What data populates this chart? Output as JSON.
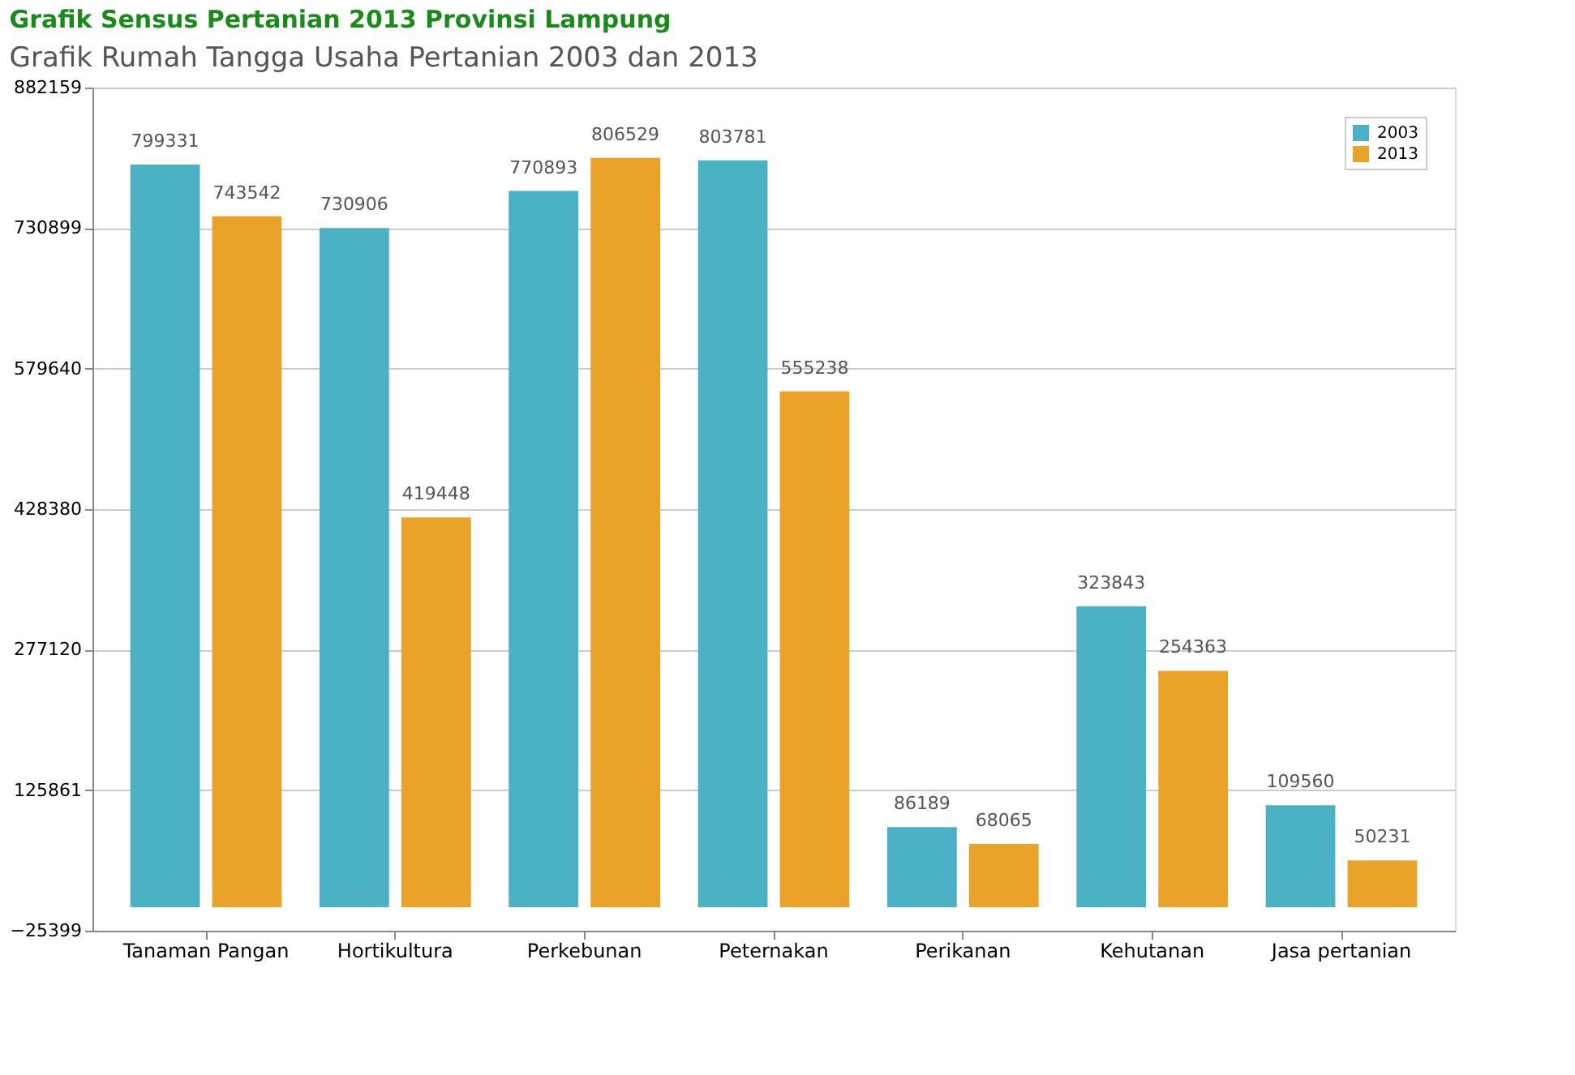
{
  "chart_data": {
    "type": "bar",
    "title": "Grafik Sensus Pertanian 2013 Provinsi Lampung",
    "subtitle": "Grafik Rumah Tangga Usaha Pertanian 2003 dan 2013",
    "categories": [
      "Tanaman Pangan",
      "Hortikultura",
      "Perkebunan",
      "Peternakan",
      "Perikanan",
      "Kehutanan",
      "Jasa pertanian"
    ],
    "series": [
      {
        "name": "2003",
        "color": "#4bb2c5",
        "values": [
          799331,
          730906,
          770893,
          803781,
          86189,
          323843,
          109560
        ]
      },
      {
        "name": "2013",
        "color": "#eaa228",
        "values": [
          743542,
          419448,
          806529,
          555238,
          68065,
          254363,
          50231
        ]
      }
    ],
    "ylim": [
      -25399,
      882159
    ],
    "yticks": [
      -25399,
      125861,
      277120,
      428380,
      579640,
      730899,
      882159
    ],
    "grid": "y",
    "legend": "top right",
    "data_labels": true
  }
}
